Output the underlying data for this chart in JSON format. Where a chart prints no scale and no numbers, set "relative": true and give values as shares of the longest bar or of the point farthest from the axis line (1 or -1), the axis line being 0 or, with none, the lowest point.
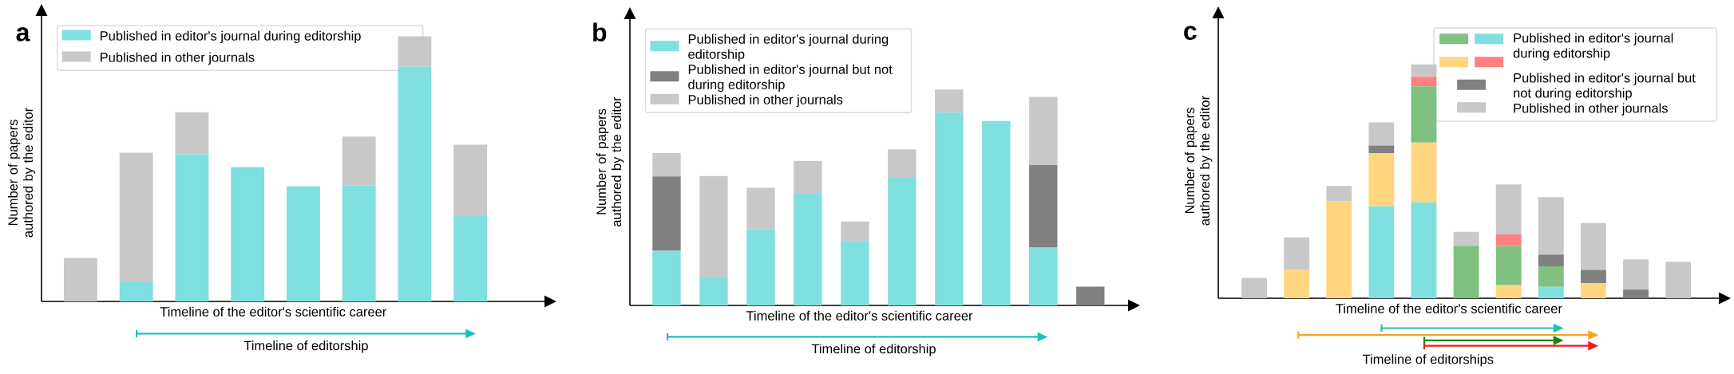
{
  "chart_data": [
    {
      "type": "bar",
      "title": "a",
      "xlabel": "Timeline of the editor's scientific career",
      "ylabel": "Number of papers authored by the editor",
      "annotations": [
        "Timeline of editorship"
      ],
      "relative": true,
      "stacked": true,
      "legend": "top left",
      "categories": [
        null,
        null,
        null,
        null,
        null,
        null,
        null,
        null
      ],
      "series": [
        {
          "name": "Published in editor's journal during editorship",
          "color": "#80dfdf",
          "values": [
            0,
            0.075,
            0.556,
            0.507,
            0.435,
            0.437,
            0.886,
            0.322
          ]
        },
        {
          "name": "Published in other journals",
          "color": "#c8c8c8",
          "values": [
            0.164,
            0.486,
            0.158,
            0,
            0,
            0.185,
            0.114,
            0.269
          ]
        }
      ]
    },
    {
      "type": "bar",
      "title": "b",
      "xlabel": "Timeline of the editor's scientific career",
      "ylabel": "Number of papers authored by the editor",
      "annotations": [
        "Timeline of editorship"
      ],
      "relative": true,
      "stacked": true,
      "legend": "top left",
      "categories": [
        null,
        null,
        null,
        null,
        null,
        null,
        null,
        null,
        null,
        null
      ],
      "series": [
        {
          "name": "Published in editor's journal during editorship",
          "color": "#80dfdf",
          "values": [
            0.253,
            0.132,
            0.353,
            0.517,
            0.297,
            0.591,
            0.893,
            0.854,
            0.27,
            0
          ]
        },
        {
          "name": "Published in editor's journal but not during editorship",
          "color": "#808080",
          "values": [
            0.345,
            0,
            0,
            0,
            0,
            0,
            0,
            0,
            0.38,
            0.087
          ]
        },
        {
          "name": "Published in other journals",
          "color": "#c8c8c8",
          "values": [
            0.108,
            0.467,
            0.192,
            0.153,
            0.092,
            0.132,
            0.107,
            0,
            0.316,
            0
          ]
        }
      ]
    },
    {
      "type": "bar",
      "title": "c",
      "xlabel": "Timeline of the editor's scientific career",
      "ylabel": "Number of papers authored by the editor",
      "annotations": [
        "Timeline of editorships"
      ],
      "relative": true,
      "stacked": true,
      "legend": "top right",
      "categories": [
        null,
        null,
        null,
        null,
        null,
        null,
        null,
        null,
        null,
        null,
        null
      ],
      "series": [
        {
          "name": "Published in editor's journal during editorship",
          "color": "#80dfdf",
          "values": [
            0,
            0,
            0,
            0.393,
            0.41,
            0,
            0,
            0.049,
            0,
            0,
            0
          ]
        },
        {
          "color": "#ffd580",
          "values": [
            0,
            0.122,
            0.413,
            0.227,
            0.256,
            0,
            0.056,
            0,
            0.065,
            0,
            0
          ]
        },
        {
          "color": "#80c080",
          "values": [
            0,
            0,
            0,
            0,
            0.24,
            0.224,
            0.167,
            0.087,
            0,
            0,
            0
          ]
        },
        {
          "color": "#ff8080",
          "values": [
            0,
            0,
            0,
            0,
            0.041,
            0,
            0.051,
            0,
            0,
            0,
            0
          ]
        },
        {
          "name": "Published in editor's journal but not during editorship",
          "color": "#808080",
          "values": [
            0,
            0,
            0,
            0.033,
            0,
            0,
            0,
            0.051,
            0.056,
            0.037,
            0
          ]
        },
        {
          "name": "Published in other journals",
          "color": "#c8c8c8",
          "values": [
            0.087,
            0.138,
            0.067,
            0.099,
            0.053,
            0.06,
            0.213,
            0.245,
            0.2,
            0.129,
            0.156
          ]
        }
      ]
    }
  ]
}
